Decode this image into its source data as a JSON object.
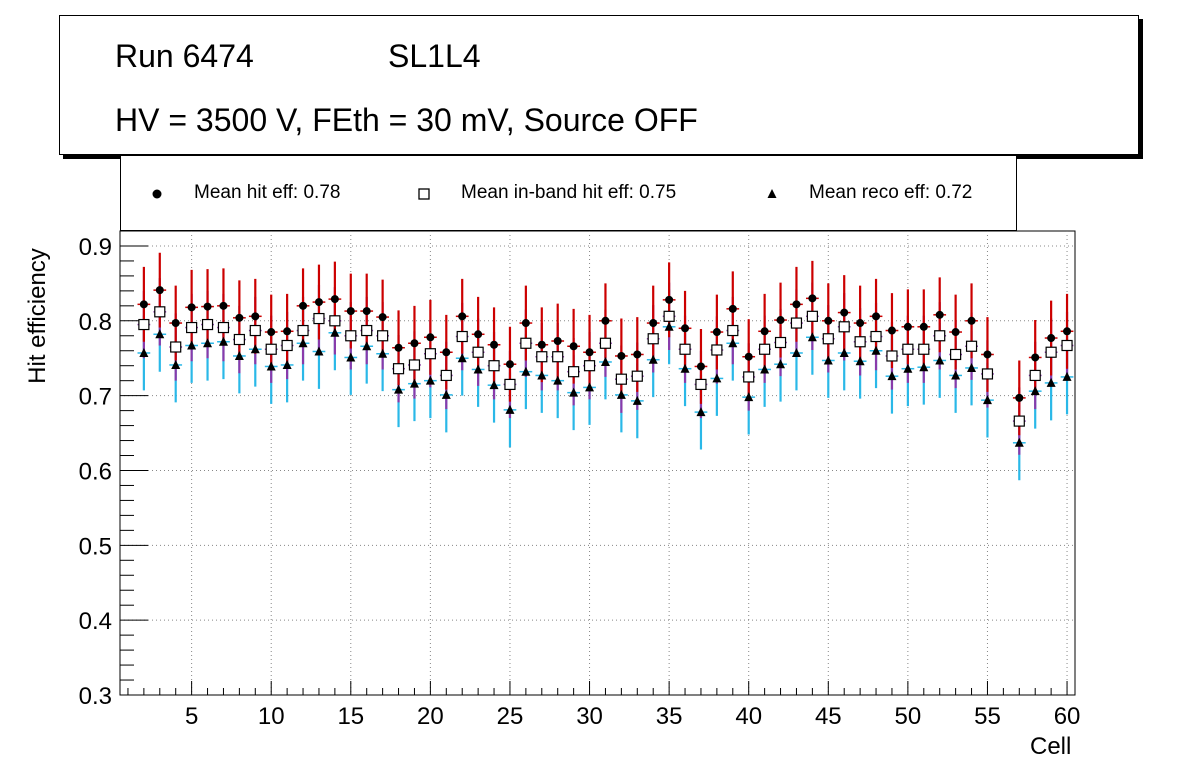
{
  "header": {
    "run": "Run 6474",
    "layer": "SL1L4",
    "conditions": "HV = 3500 V, FEth = 30 mV, Source OFF"
  },
  "legend": {
    "hit": "Mean hit  eff: 0.78",
    "inband": "Mean in-band hit eff: 0.75",
    "reco": "Mean reco eff: 0.72"
  },
  "colors": {
    "hit_err": "#cc0000",
    "inband_err": "#8a3aaa",
    "reco_err": "#2ab8e8",
    "grid": "#888888"
  },
  "chart_data": {
    "type": "scatter",
    "title": "Run 6474 SL1L4 — HV = 3500 V, FEth = 30 mV, Source OFF",
    "xlabel": "Cell",
    "ylabel": "Hit efficiency",
    "xlim": [
      0.5,
      60.5
    ],
    "ylim": [
      0.3,
      0.92
    ],
    "xticks": [
      5,
      10,
      15,
      20,
      25,
      30,
      35,
      40,
      45,
      50,
      55,
      60
    ],
    "yticks": [
      0.3,
      0.4,
      0.5,
      0.6,
      0.7,
      0.8,
      0.9
    ],
    "grid": true,
    "x": [
      2,
      3,
      4,
      5,
      6,
      7,
      8,
      9,
      10,
      11,
      12,
      13,
      14,
      15,
      16,
      17,
      18,
      19,
      20,
      21,
      22,
      23,
      24,
      25,
      26,
      27,
      28,
      29,
      30,
      31,
      32,
      33,
      34,
      35,
      36,
      37,
      38,
      39,
      40,
      41,
      42,
      43,
      44,
      45,
      46,
      47,
      48,
      49,
      50,
      51,
      52,
      53,
      54,
      55,
      57,
      58,
      59,
      60
    ],
    "series": [
      {
        "name": "Mean hit eff",
        "marker": "circle",
        "error": 0.05,
        "values": [
          0.822,
          0.841,
          0.797,
          0.818,
          0.819,
          0.82,
          0.804,
          0.806,
          0.785,
          0.786,
          0.82,
          0.825,
          0.829,
          0.813,
          0.813,
          0.805,
          0.764,
          0.77,
          0.778,
          0.758,
          0.806,
          0.782,
          0.768,
          0.742,
          0.797,
          0.768,
          0.773,
          0.766,
          0.758,
          0.8,
          0.753,
          0.755,
          0.797,
          0.828,
          0.79,
          0.739,
          0.785,
          0.816,
          0.752,
          0.786,
          0.801,
          0.822,
          0.83,
          0.8,
          0.811,
          0.797,
          0.806,
          0.787,
          0.792,
          0.792,
          0.808,
          0.785,
          0.8,
          0.755,
          0.697,
          0.751,
          0.777,
          0.786
        ]
      },
      {
        "name": "Mean in-band hit eff",
        "marker": "open-square",
        "error": 0.045,
        "values": [
          0.795,
          0.812,
          0.765,
          0.791,
          0.795,
          0.791,
          0.775,
          0.787,
          0.762,
          0.767,
          0.787,
          0.803,
          0.8,
          0.78,
          0.787,
          0.78,
          0.736,
          0.741,
          0.756,
          0.727,
          0.779,
          0.758,
          0.74,
          0.715,
          0.77,
          0.752,
          0.752,
          0.732,
          0.74,
          0.77,
          0.722,
          0.726,
          0.776,
          0.806,
          0.762,
          0.715,
          0.761,
          0.787,
          0.725,
          0.762,
          0.771,
          0.797,
          0.806,
          0.776,
          0.792,
          0.772,
          0.779,
          0.753,
          0.762,
          0.762,
          0.78,
          0.755,
          0.766,
          0.729,
          0.666,
          0.727,
          0.758,
          0.767
        ]
      },
      {
        "name": "Mean reco eff",
        "marker": "triangle",
        "error": 0.05,
        "values": [
          0.757,
          0.782,
          0.741,
          0.767,
          0.77,
          0.772,
          0.753,
          0.762,
          0.739,
          0.741,
          0.77,
          0.759,
          0.784,
          0.751,
          0.766,
          0.756,
          0.708,
          0.716,
          0.72,
          0.701,
          0.75,
          0.735,
          0.714,
          0.681,
          0.732,
          0.727,
          0.72,
          0.704,
          0.711,
          0.745,
          0.701,
          0.693,
          0.748,
          0.792,
          0.736,
          0.678,
          0.723,
          0.77,
          0.698,
          0.735,
          0.742,
          0.757,
          0.778,
          0.747,
          0.757,
          0.746,
          0.76,
          0.726,
          0.736,
          0.738,
          0.747,
          0.727,
          0.737,
          0.694,
          0.637,
          0.706,
          0.717,
          0.725
        ]
      }
    ]
  }
}
